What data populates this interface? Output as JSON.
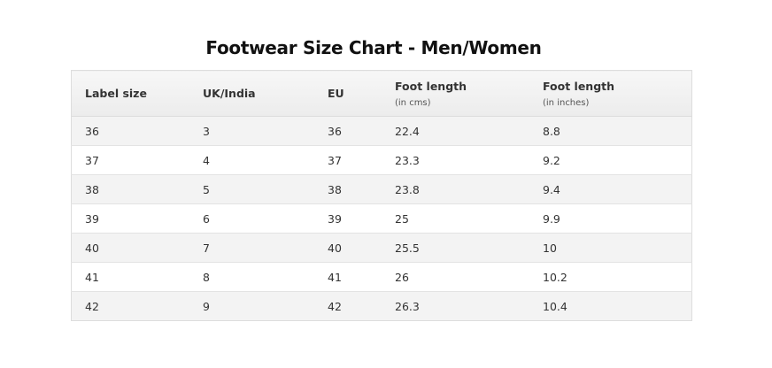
{
  "title": "Footwear Size Chart -  Men/Women",
  "headers": [
    {
      "label": "Label size",
      "sub": ""
    },
    {
      "label": "UK/India",
      "sub": ""
    },
    {
      "label": "EU",
      "sub": ""
    },
    {
      "label": "Foot length",
      "sub": "(in cms)"
    },
    {
      "label": "Foot length",
      "sub": "(in inches)"
    }
  ],
  "rows": [
    [
      "36",
      "3",
      "36",
      "22.4",
      "8.8"
    ],
    [
      "37",
      "4",
      "37",
      "23.3",
      "9.2"
    ],
    [
      "38",
      "5",
      "38",
      "23.8",
      "9.4"
    ],
    [
      "39",
      "6",
      "39",
      "25",
      "9.9"
    ],
    [
      "40",
      "7",
      "40",
      "25.5",
      "10"
    ],
    [
      "41",
      "8",
      "41",
      "26",
      "10.2"
    ],
    [
      "42",
      "9",
      "42",
      "26.3",
      "10.4"
    ]
  ]
}
